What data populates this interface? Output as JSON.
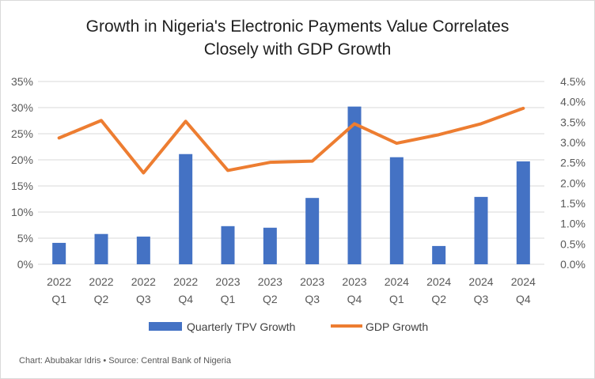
{
  "colors": {
    "bar": "#4472C4",
    "line": "#ED7D31",
    "grid": "#D9D9D9",
    "text": "#595959"
  },
  "chart_data": {
    "type": "bar",
    "title_lines": [
      "Growth in Nigeria's Electronic Payments Value Correlates",
      "Closely with GDP Growth"
    ],
    "categories": [
      [
        "2022",
        "Q1"
      ],
      [
        "2022",
        "Q2"
      ],
      [
        "2022",
        "Q3"
      ],
      [
        "2022",
        "Q4"
      ],
      [
        "2023",
        "Q1"
      ],
      [
        "2023",
        "Q2"
      ],
      [
        "2023",
        "Q3"
      ],
      [
        "2023",
        "Q4"
      ],
      [
        "2024",
        "Q1"
      ],
      [
        "2024",
        "Q2"
      ],
      [
        "2024",
        "Q3"
      ],
      [
        "2024",
        "Q4"
      ]
    ],
    "series": [
      {
        "name": "Quarterly TPV Growth",
        "type": "bar",
        "axis": "left",
        "values": [
          4.1,
          5.8,
          5.3,
          21.1,
          7.3,
          7.0,
          12.7,
          30.2,
          20.5,
          3.5,
          12.9,
          19.7
        ]
      },
      {
        "name": "GDP Growth",
        "type": "line",
        "axis": "right",
        "values": [
          3.11,
          3.54,
          2.25,
          3.52,
          2.31,
          2.51,
          2.54,
          3.46,
          2.98,
          3.19,
          3.46,
          3.84
        ]
      }
    ],
    "y_left": {
      "min": 0,
      "max": 35,
      "step": 5,
      "tick_labels": [
        "0%",
        "5%",
        "10%",
        "15%",
        "20%",
        "25%",
        "30%",
        "35%"
      ]
    },
    "y_right": {
      "min": 0,
      "max": 4.5,
      "step": 0.5,
      "tick_labels": [
        "0.0%",
        "0.5%",
        "1.0%",
        "1.5%",
        "2.0%",
        "2.5%",
        "3.0%",
        "3.5%",
        "4.0%",
        "4.5%"
      ]
    },
    "grid": true,
    "legend_position": "bottom",
    "footer": "Chart: Abubakar Idris • Source: Central Bank of Nigeria"
  }
}
